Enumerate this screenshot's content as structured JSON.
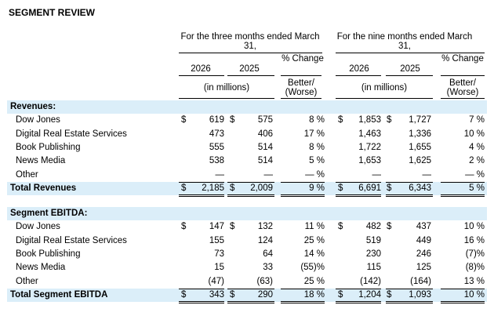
{
  "title": "SEGMENT REVIEW",
  "headers": {
    "three_months": "For the three months ended March 31,",
    "nine_months": "For the nine months ended March 31,",
    "year_2026": "2026",
    "year_2025": "2025",
    "pct_change": "% Change",
    "in_millions": "(in millions)",
    "better_worse": "Better/ (Worse)"
  },
  "revenues": {
    "section_label": "Revenues:",
    "rows": [
      {
        "label": "Dow Jones",
        "q26": "619",
        "q25": "575",
        "qpct": "8 %",
        "n26": "1,853",
        "n25": "1,727",
        "npct": "7 %",
        "dollar": true
      },
      {
        "label": "Digital Real Estate Services",
        "q26": "473",
        "q25": "406",
        "qpct": "17 %",
        "n26": "1,463",
        "n25": "1,336",
        "npct": "10 %",
        "dollar": false
      },
      {
        "label": "Book Publishing",
        "q26": "555",
        "q25": "514",
        "qpct": "8 %",
        "n26": "1,722",
        "n25": "1,655",
        "npct": "4 %",
        "dollar": false
      },
      {
        "label": "News Media",
        "q26": "538",
        "q25": "514",
        "qpct": "5 %",
        "n26": "1,653",
        "n25": "1,625",
        "npct": "2 %",
        "dollar": false
      },
      {
        "label": "Other",
        "q26": "—",
        "q25": "—",
        "qpct": "— %",
        "n26": "—",
        "n25": "—",
        "npct": "— %",
        "dollar": false
      }
    ],
    "total": {
      "label": "Total Revenues",
      "q26": "2,185",
      "q25": "2,009",
      "qpct": "9 %",
      "n26": "6,691",
      "n25": "6,343",
      "npct": "5 %"
    }
  },
  "ebitda": {
    "section_label": "Segment EBITDA:",
    "rows": [
      {
        "label": "Dow Jones",
        "q26": "147",
        "q25": "132",
        "qpct": "11 %",
        "n26": "482",
        "n25": "437",
        "npct": "10 %",
        "dollar": true
      },
      {
        "label": "Digital Real Estate Services",
        "q26": "155",
        "q25": "124",
        "qpct": "25 %",
        "n26": "519",
        "n25": "449",
        "npct": "16 %",
        "dollar": false
      },
      {
        "label": "Book Publishing",
        "q26": "73",
        "q25": "64",
        "qpct": "14 %",
        "n26": "230",
        "n25": "246",
        "npct": "(7)%",
        "dollar": false
      },
      {
        "label": "News Media",
        "q26": "15",
        "q25": "33",
        "qpct": "(55)%",
        "n26": "115",
        "n25": "125",
        "npct": "(8)%",
        "dollar": false
      },
      {
        "label": "Other",
        "q26": "(47)",
        "q25": "(63)",
        "qpct": "25 %",
        "n26": "(142)",
        "n25": "(164)",
        "npct": "13 %",
        "dollar": false
      }
    ],
    "total": {
      "label": "Total Segment EBITDA",
      "q26": "343",
      "q25": "290",
      "qpct": "18 %",
      "n26": "1,204",
      "n25": "1,093",
      "npct": "10 %"
    }
  },
  "dollar_sign": "$"
}
